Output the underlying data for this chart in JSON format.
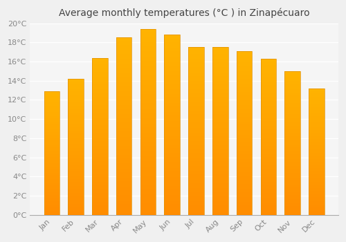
{
  "title": "Average monthly temperatures (°C ) in Zinapécuaro",
  "months": [
    "Jan",
    "Feb",
    "Mar",
    "Apr",
    "May",
    "Jun",
    "Jul",
    "Aug",
    "Sep",
    "Oct",
    "Nov",
    "Dec"
  ],
  "values": [
    12.9,
    14.2,
    16.4,
    18.5,
    19.4,
    18.8,
    17.5,
    17.5,
    17.1,
    16.3,
    15.0,
    13.2
  ],
  "bar_color_top": "#FFB300",
  "bar_color_bottom": "#FF8C00",
  "bar_color_edge": "#E09000",
  "background_color": "#F0F0F0",
  "plot_bg_color": "#F5F5F5",
  "grid_color": "#FFFFFF",
  "ylim": [
    0,
    20
  ],
  "ytick_step": 2,
  "title_fontsize": 10,
  "tick_fontsize": 8,
  "tick_label_color": "#888888",
  "title_color": "#444444"
}
